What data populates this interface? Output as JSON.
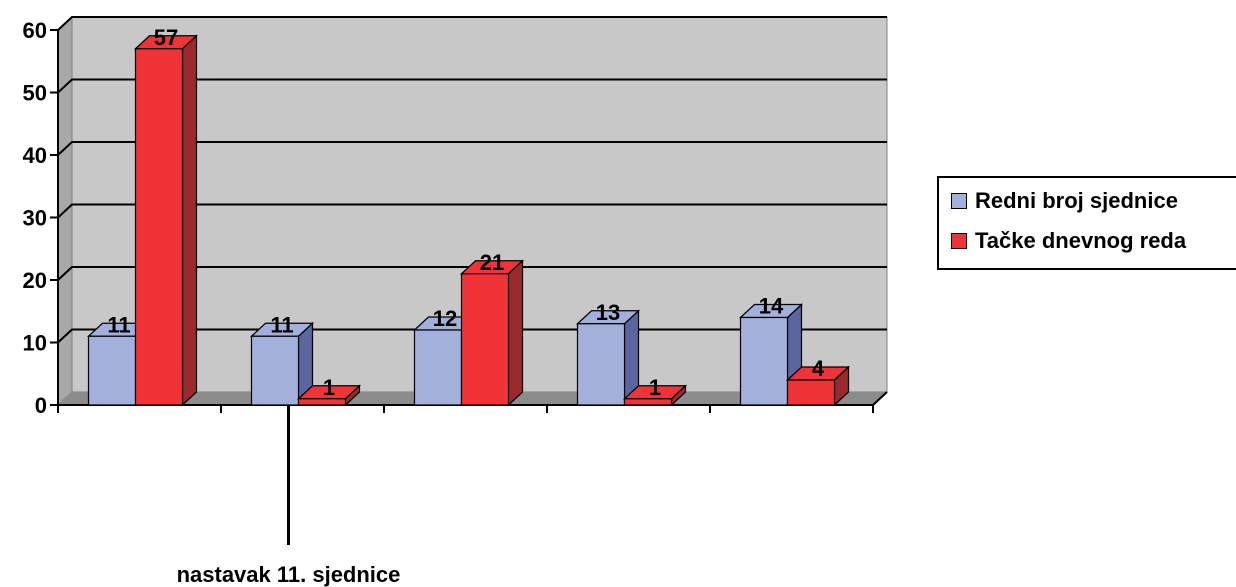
{
  "chart_data": {
    "type": "bar",
    "three_d": true,
    "categories": [
      "",
      "",
      "",
      "",
      ""
    ],
    "series": [
      {
        "name": "Redni broj sjednice",
        "values": [
          11,
          11,
          12,
          13,
          14
        ],
        "color": "#a4b0dc",
        "side_color": "#5a66a0"
      },
      {
        "name": "Tačke dnevnog reda",
        "values": [
          57,
          1,
          21,
          1,
          4
        ],
        "color": "#ef3337",
        "side_color": "#9a2a2e"
      }
    ],
    "ylim": [
      0,
      60
    ],
    "yticks": [
      "0",
      "10",
      "20",
      "30",
      "40",
      "50",
      "60"
    ],
    "grid": true,
    "plot_background": "#c8c8c8",
    "legend_position": "right",
    "annotation": {
      "text": "nastavak 11. sjednice",
      "category_index": 1
    }
  }
}
